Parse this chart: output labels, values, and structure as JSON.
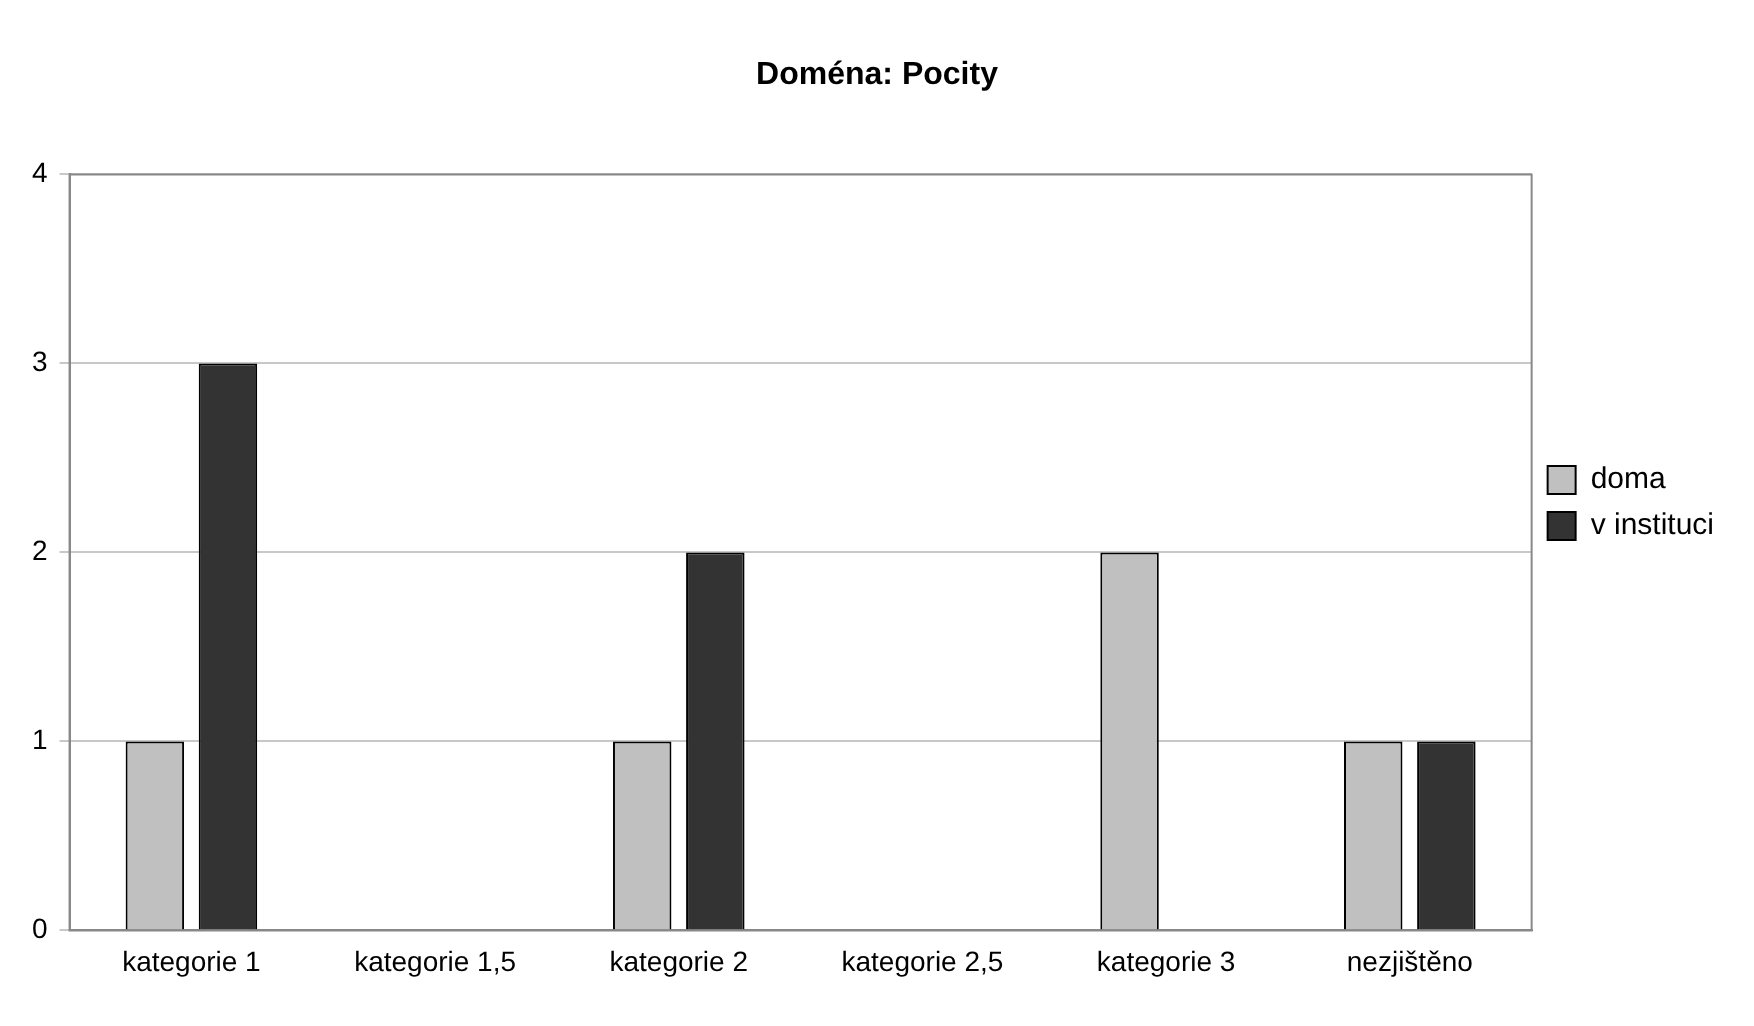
{
  "chart_data": {
    "type": "bar",
    "title": "Doména: Pocity",
    "categories": [
      "kategorie 1",
      "kategorie 1,5",
      "kategorie 2",
      "kategorie 2,5",
      "kategorie 3",
      "nezjištěno"
    ],
    "series": [
      {
        "name": "doma",
        "color": "#c0c0c0",
        "values": [
          1,
          0,
          1,
          0,
          2,
          1
        ]
      },
      {
        "name": "v instituci",
        "color": "#333333",
        "values": [
          3,
          0,
          2,
          0,
          0,
          1
        ]
      }
    ],
    "ylim": [
      0,
      4
    ],
    "yticks": [
      0,
      1,
      2,
      3,
      4
    ],
    "grid": "y",
    "legend": "right"
  }
}
